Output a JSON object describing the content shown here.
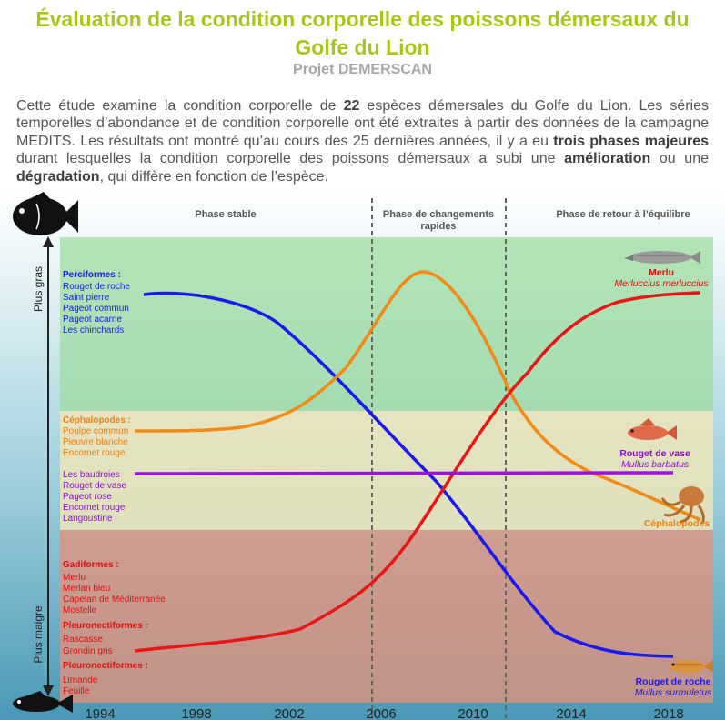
{
  "header": {
    "title_line1": "Évaluation de la condition corporelle des poissons démersaux du",
    "title_line2": "Golfe du Lion",
    "subtitle": "Projet DEMERSCAN"
  },
  "intro": {
    "p1": "Cette étude examine la condition corporelle de ",
    "n_species": "22",
    "p2": " espèces démersales du Golfe du Lion. Les séries temporelles d’abondance et de condition corporelle ont été extraites à partir des données de la campagne MEDITS. Les résultats ont montré qu’au cours des 25 dernières années, il y a eu ",
    "b_phases": "trois phases majeures",
    "p3": " durant lesquelles la condition corporelle des poissons démersaux a subi une ",
    "b_amelioration": "amélioration",
    "p4": " ou une ",
    "b_degradation": "dégradation",
    "p5": ", qui diffère en fonction de l’espèce."
  },
  "figure": {
    "phases": {
      "stable": "Phase stable",
      "changes_line1": "Phase de changements",
      "changes_line2": "rapides",
      "return": "Phase de retour à l’équilibre"
    },
    "axis": {
      "fat": "Plus gras",
      "thin": "Plus maigre",
      "year_ticks": [
        "1994",
        "1998",
        "2002",
        "2006",
        "2010",
        "2014",
        "2018"
      ]
    },
    "groups": {
      "blue": {
        "head": "Perciformes :",
        "items": [
          "Rouget de roche",
          "Saint pierre",
          "Pageot commun",
          "Pageot acarne",
          "Les chinchards"
        ]
      },
      "orange": {
        "head": "Céphalopodes :",
        "items": [
          "Poulpe commun",
          "Pieuvre blanche",
          "Encornet rouge"
        ]
      },
      "purple": {
        "items": [
          "Les baudroies",
          "Rouget de vase",
          "Pageot rose",
          "Encornet rouge",
          "Langoustine"
        ]
      },
      "red": {
        "head1": "Gadiformes :",
        "items1": [
          "Merlu",
          "Merlan bleu",
          "Capelan de Méditerranée",
          "Mostelle"
        ],
        "head2": "Pleuronectiformes :",
        "items2": [
          "Rascasse",
          "Grondin gris"
        ],
        "head3": "Pleuronectiformes :",
        "items3": [
          "Limande",
          "Feuille"
        ]
      }
    },
    "end_labels": {
      "merlu": "Merlu",
      "merlu_latin": "Merluccius merluccius",
      "rouget_vase": "Rouget de vase",
      "rouget_vase_latin": "Mullus barbatus",
      "cephalopodes": "Céphalopodes",
      "rouget_roche": "Rouget de roche",
      "rouget_roche_latin": "Mullus surmuletus"
    },
    "colors": {
      "title": "#a8c61a",
      "blue_curve": "#1a1aee",
      "orange_curve": "#f28a16",
      "red_curve": "#e81616",
      "purple_curve": "#9a12e0",
      "zone_green": "#9edca0",
      "zone_yellow": "#f2e6b6",
      "zone_red": "#e2917c"
    }
  }
}
